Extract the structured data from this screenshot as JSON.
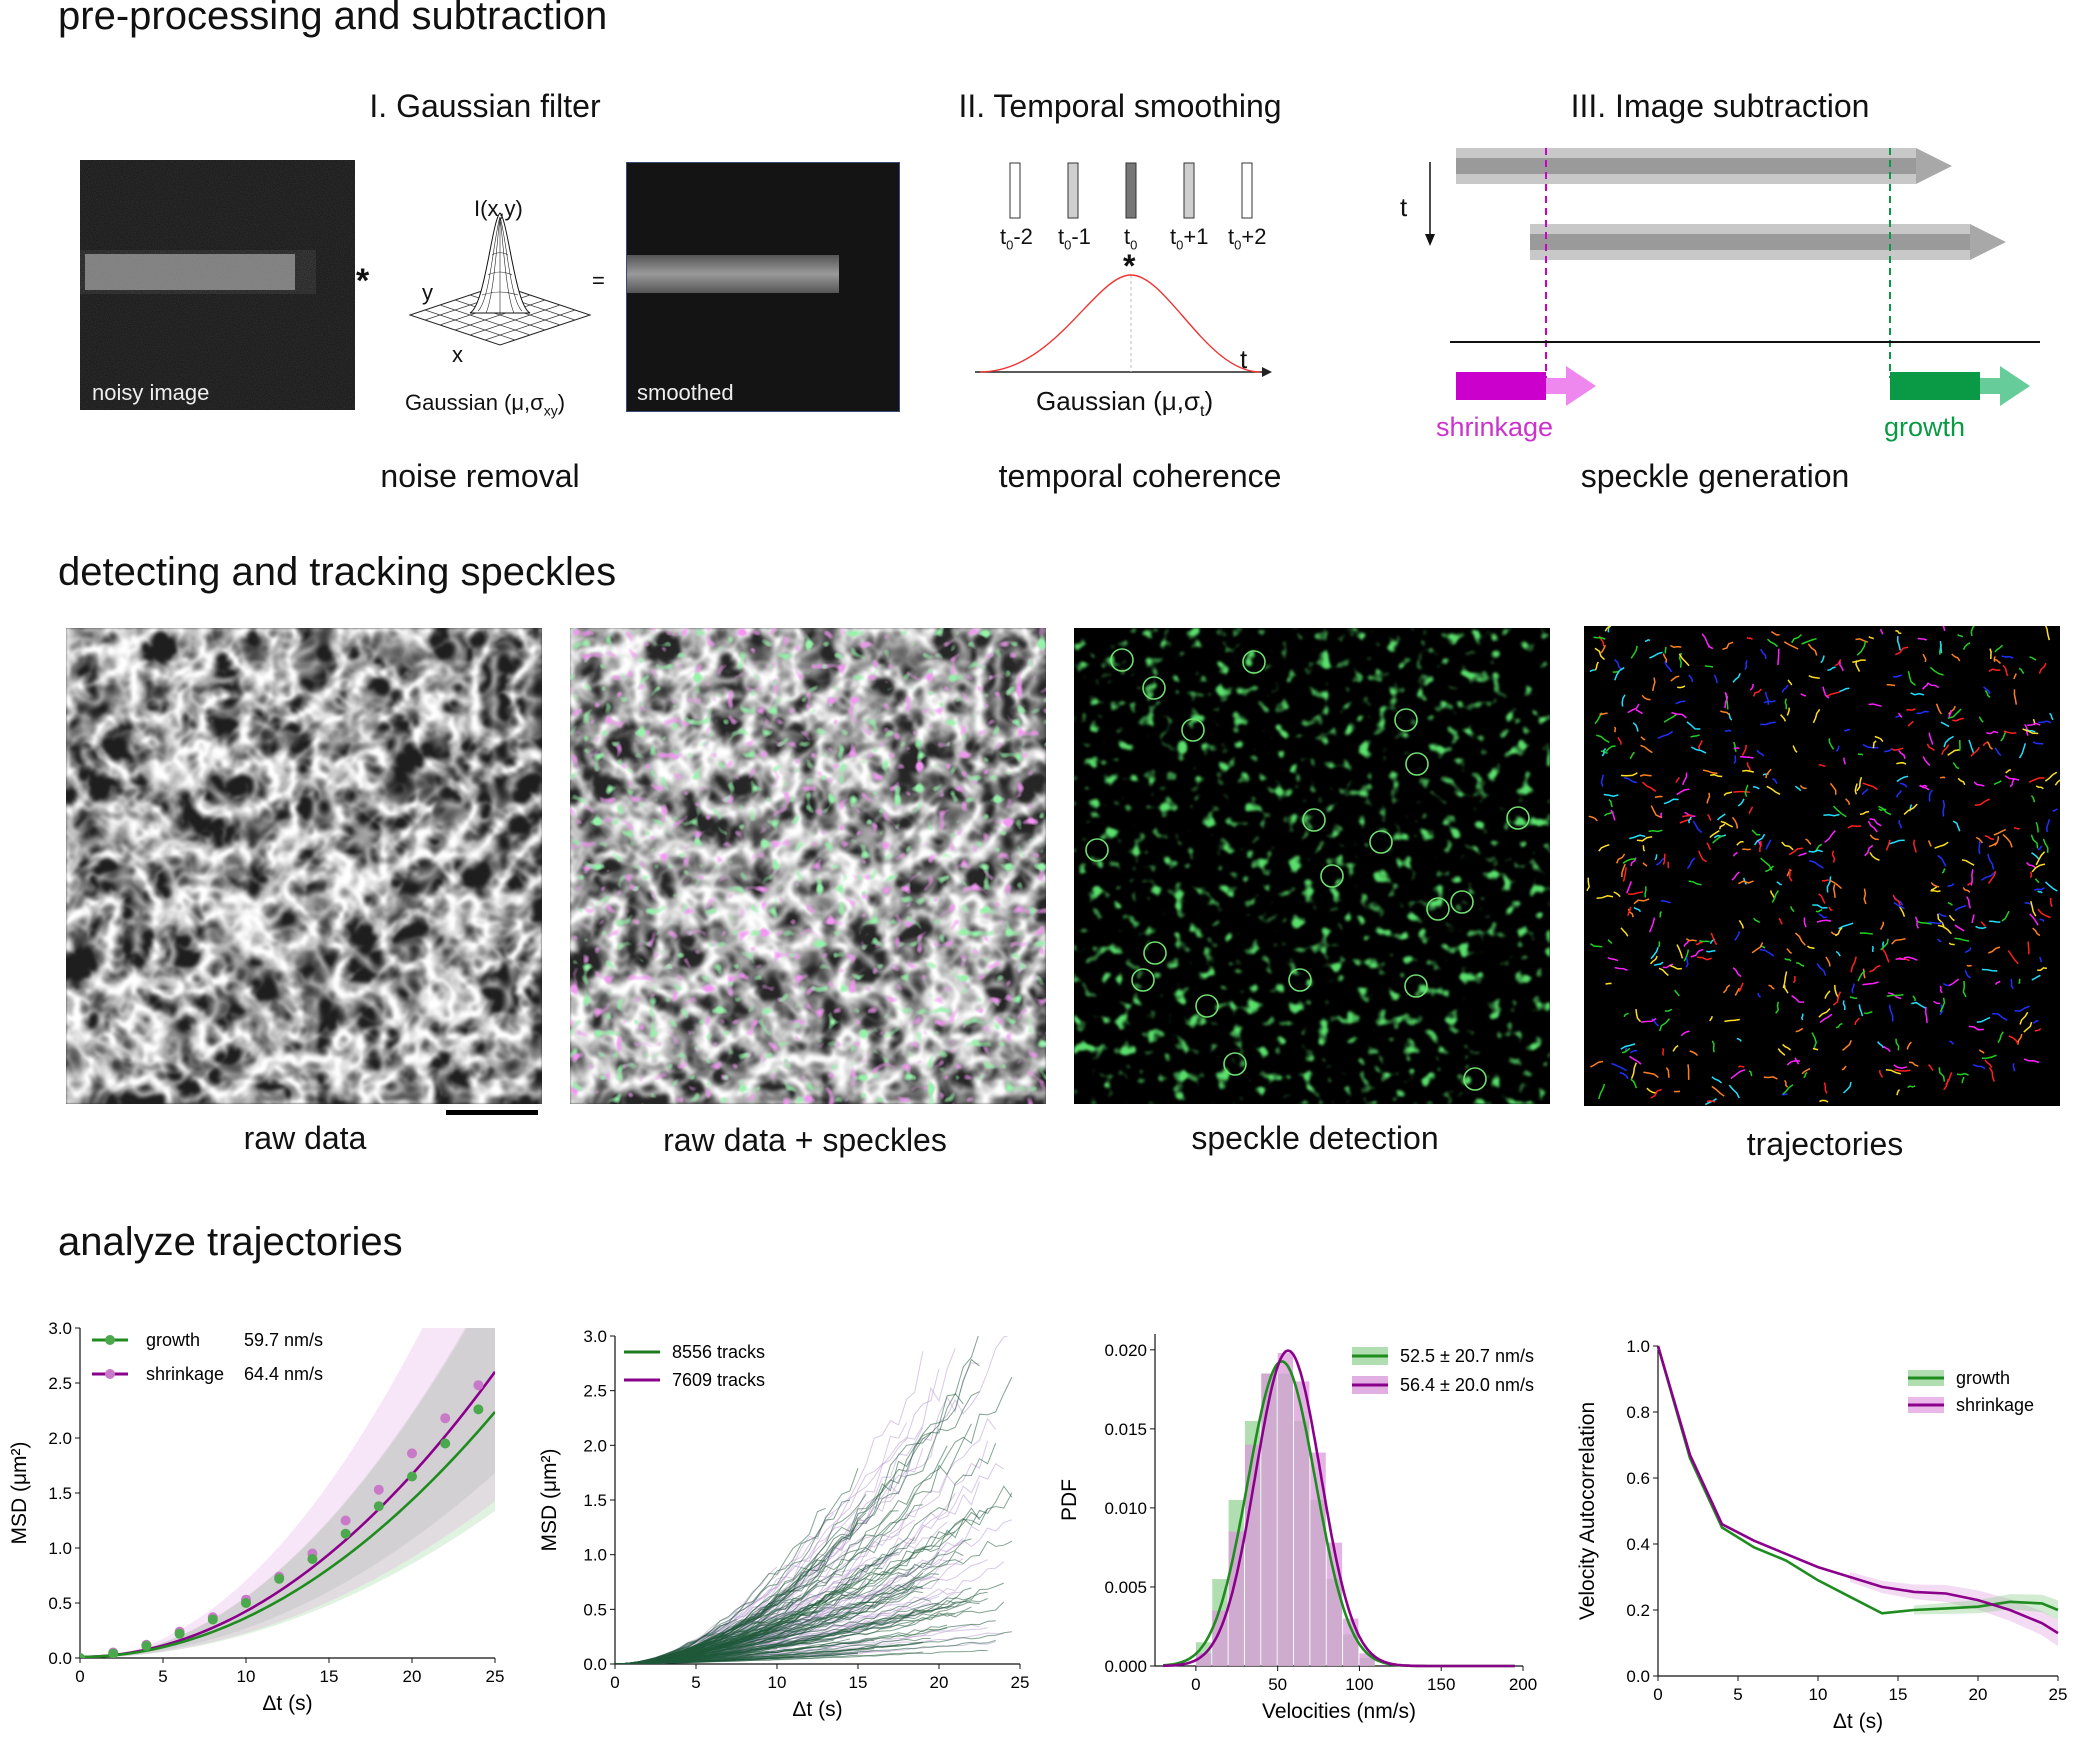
{
  "sections": {
    "s1": "pre-processing and subtraction",
    "s2": "detecting and tracking speckles",
    "s3": "analyze trajectories"
  },
  "panel1": {
    "title": "I. Gaussian filter",
    "noisy_label": "noisy image",
    "smoothed_label": "smoothed",
    "conv_symbol": "*",
    "equals_symbol": "=",
    "surface_label": "I(x,y)",
    "axis_y": "y",
    "axis_x": "x",
    "gaussian_label": "Gaussian (μ,σ",
    "gaussian_sub": "xy",
    "gaussian_close": ")",
    "caption": "noise removal"
  },
  "panel2": {
    "title": "II. Temporal smoothing",
    "frames": [
      {
        "main": "t",
        "sub": "0",
        "suffix": "-2"
      },
      {
        "main": "t",
        "sub": "0",
        "suffix": "-1"
      },
      {
        "main": "t",
        "sub": "0",
        "suffix": ""
      },
      {
        "main": "t",
        "sub": "0",
        "suffix": "+1"
      },
      {
        "main": "t",
        "sub": "0",
        "suffix": "+2"
      }
    ],
    "conv_symbol": "*",
    "axis_t": "t",
    "gaussian_label": "Gaussian (μ,σ",
    "gaussian_sub": "t",
    "gaussian_close": ")",
    "caption": "temporal coherence"
  },
  "panel3": {
    "title": "III. Image subtraction",
    "axis_t": "t",
    "shrinkage": "shrinkage",
    "growth": "growth",
    "caption": "speckle generation",
    "colors": {
      "shrinkage": "#cc00cc",
      "growth": "#0a9a45"
    }
  },
  "row2": {
    "captions": [
      "raw data",
      "raw data + speckles",
      "speckle detection",
      "trajectories"
    ]
  },
  "charts": {
    "msd": {
      "xlabel": "Δt (s)",
      "ylabel": "MSD (μm²)",
      "xticks": [
        "0",
        "5",
        "10",
        "15",
        "20",
        "25"
      ],
      "yticks": [
        "0.0",
        "0.5",
        "1.0",
        "1.5",
        "2.0",
        "2.5",
        "3.0"
      ],
      "legend": [
        {
          "name": "growth",
          "value": "59.7 nm/s"
        },
        {
          "name": "shrinkage",
          "value": "64.4 nm/s"
        }
      ]
    },
    "tracks": {
      "xlabel": "Δt (s)",
      "ylabel": "MSD (μm²)",
      "xticks": [
        "0",
        "5",
        "10",
        "15",
        "20",
        "25"
      ],
      "yticks": [
        "0.0",
        "0.5",
        "1.0",
        "1.5",
        "2.0",
        "2.5",
        "3.0"
      ],
      "legend": [
        "8556 tracks",
        "7609 tracks"
      ]
    },
    "pdf": {
      "xlabel": "Velocities (nm/s)",
      "ylabel": "PDF",
      "xticks": [
        "0",
        "50",
        "100",
        "150",
        "200"
      ],
      "yticks": [
        "0.000",
        "0.005",
        "0.010",
        "0.015",
        "0.020"
      ],
      "legend": [
        "52.5 ± 20.7 nm/s",
        "56.4 ± 20.0 nm/s"
      ]
    },
    "vac": {
      "xlabel": "Δt (s)",
      "ylabel": "Velocity Autocorrelation",
      "xticks": [
        "0",
        "5",
        "10",
        "15",
        "20",
        "25"
      ],
      "yticks": [
        "0.0",
        "0.2",
        "0.4",
        "0.6",
        "0.8",
        "1.0"
      ],
      "legend": [
        "growth",
        "shrinkage"
      ]
    }
  },
  "chart_data": [
    {
      "type": "scatter",
      "x": [
        0,
        2,
        4,
        6,
        8,
        10,
        12,
        14,
        16,
        18,
        20,
        22,
        24
      ],
      "series": [
        {
          "name": "growth",
          "values": [
            0.0,
            0.04,
            0.11,
            0.22,
            0.35,
            0.5,
            0.72,
            0.9,
            1.13,
            1.38,
            1.65,
            1.95,
            2.26
          ],
          "fit_speed": 59.7
        },
        {
          "name": "shrinkage",
          "values": [
            0.0,
            0.05,
            0.12,
            0.24,
            0.37,
            0.53,
            0.74,
            0.95,
            1.25,
            1.53,
            1.86,
            2.18,
            2.48
          ],
          "fit_speed": 64.4
        }
      ],
      "xlabel": "Δt (s)",
      "ylabel": "MSD (μm²)",
      "xlim": [
        0,
        25
      ],
      "ylim": [
        0,
        3.0
      ]
    },
    {
      "type": "line",
      "series": [
        {
          "name": "8556 tracks"
        },
        {
          "name": "7609 tracks"
        }
      ],
      "xlabel": "Δt (s)",
      "ylabel": "MSD (μm²)",
      "xlim": [
        0,
        25
      ],
      "ylim": [
        0,
        3.0
      ]
    },
    {
      "type": "bar",
      "bin_width": 10,
      "bins": [
        0,
        10,
        20,
        30,
        40,
        50,
        60,
        70,
        80,
        90,
        100
      ],
      "series": [
        {
          "name": "52.5 ± 20.7 nm/s",
          "mean": 52.5,
          "sd": 20.7,
          "values": [
            0.0015,
            0.0055,
            0.0105,
            0.0155,
            0.0185,
            0.0185,
            0.0155,
            0.0105,
            0.0055,
            0.002,
            0.0005
          ]
        },
        {
          "name": "56.4 ± 20.0 nm/s",
          "mean": 56.4,
          "sd": 20.0,
          "values": [
            0.0008,
            0.0035,
            0.0085,
            0.014,
            0.0185,
            0.0198,
            0.018,
            0.0135,
            0.0078,
            0.003,
            0.0008
          ]
        }
      ],
      "xlabel": "Velocities (nm/s)",
      "ylabel": "PDF",
      "xlim": [
        -25,
        200
      ],
      "ylim": [
        0,
        0.021
      ]
    },
    {
      "type": "line",
      "x": [
        0,
        2,
        4,
        6,
        8,
        10,
        12,
        14,
        16,
        18,
        20,
        22,
        24,
        25
      ],
      "series": [
        {
          "name": "growth",
          "values": [
            1.0,
            0.66,
            0.45,
            0.39,
            0.35,
            0.29,
            0.24,
            0.19,
            0.2,
            0.205,
            0.21,
            0.225,
            0.22,
            0.2
          ]
        },
        {
          "name": "shrinkage",
          "values": [
            1.0,
            0.67,
            0.46,
            0.41,
            0.37,
            0.33,
            0.3,
            0.27,
            0.255,
            0.25,
            0.23,
            0.2,
            0.16,
            0.13
          ]
        }
      ],
      "xlabel": "Δt (s)",
      "ylabel": "Velocity Autocorrelation",
      "xlim": [
        0,
        25
      ],
      "ylim": [
        0,
        1.0
      ]
    }
  ]
}
